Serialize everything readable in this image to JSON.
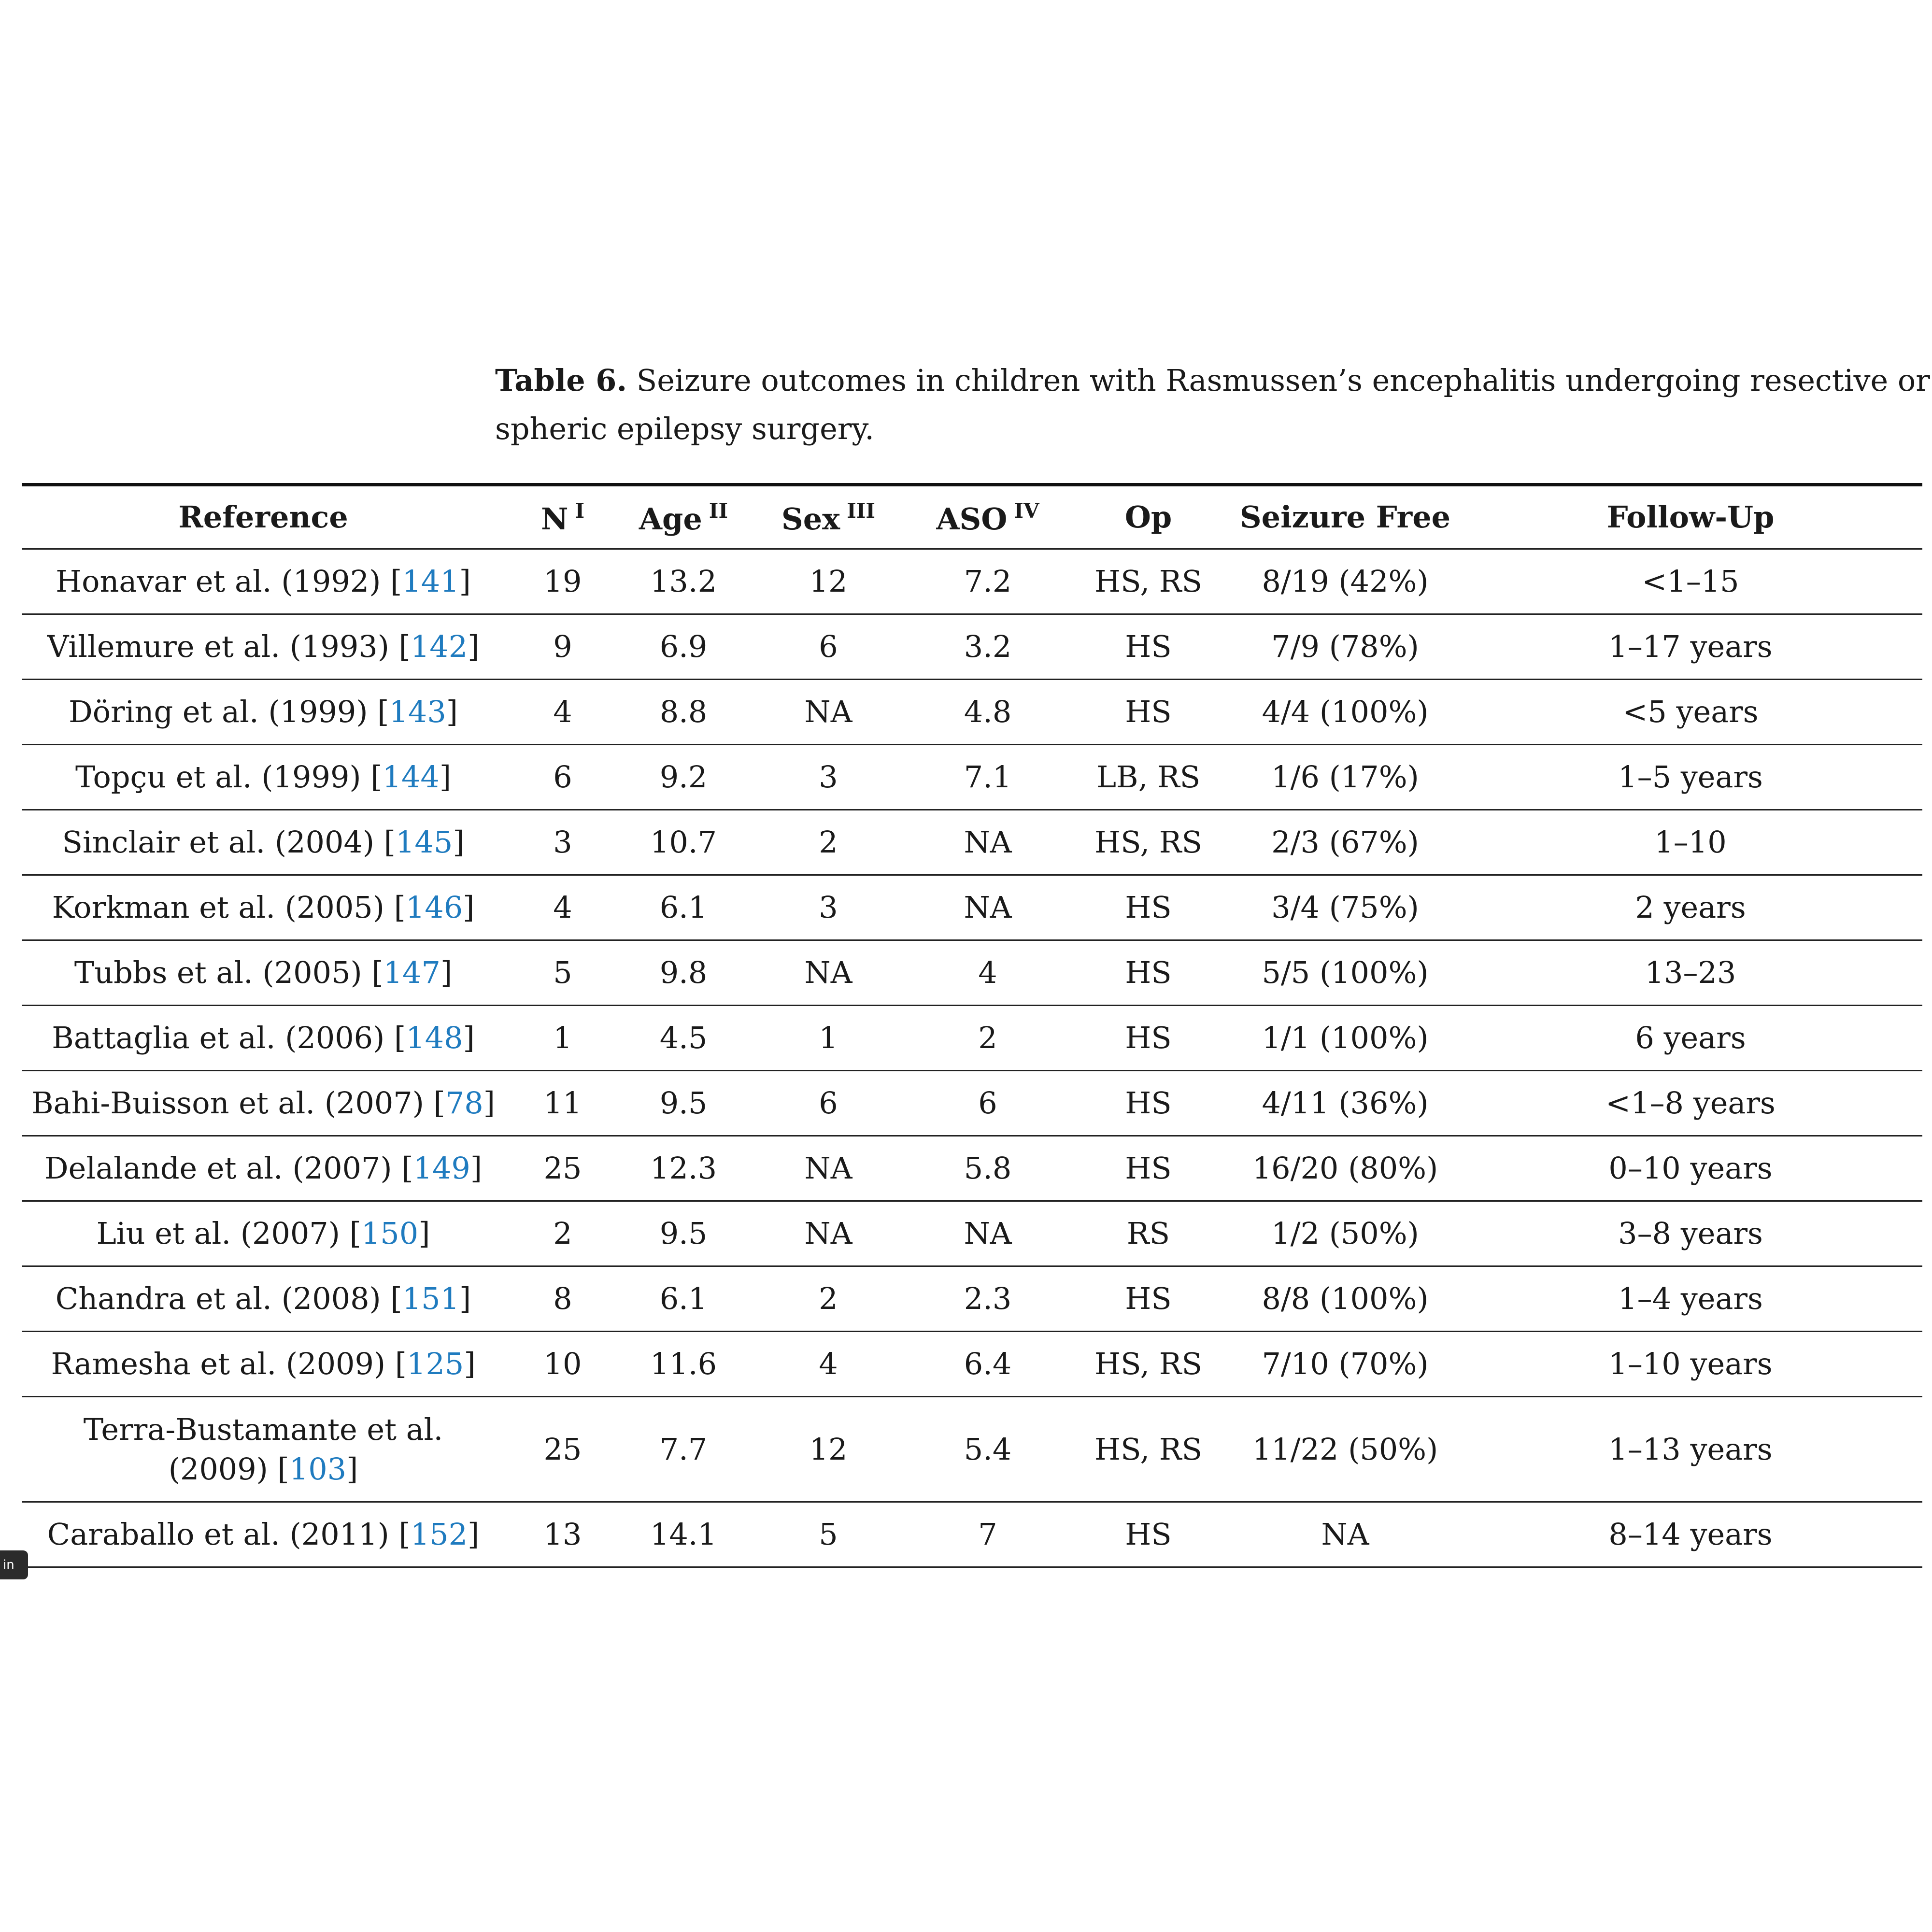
{
  "caption": {
    "label": "Table 6.",
    "line1": " Seizure outcomes in children with Rasmussen’s encephalitis undergoing resective or hemi-",
    "line2": "spheric epilepsy surgery."
  },
  "table": {
    "headers": [
      {
        "text": "Reference",
        "sup": ""
      },
      {
        "text": "N",
        "sup": "I"
      },
      {
        "text": "Age",
        "sup": "II"
      },
      {
        "text": "Sex",
        "sup": "III"
      },
      {
        "text": "ASO",
        "sup": "IV"
      },
      {
        "text": "Op",
        "sup": ""
      },
      {
        "text": "Seizure Free",
        "sup": ""
      },
      {
        "text": "Follow-Up",
        "sup": ""
      }
    ],
    "rows": [
      {
        "ref": "Honavar et al. (1992) [",
        "cite": "141",
        "n": "19",
        "age": "13.2",
        "sex": "12",
        "aso": "7.2",
        "op": "HS, RS",
        "sf": "8/19 (42%)",
        "fu": "<1–15"
      },
      {
        "ref": "Villemure et al. (1993) [",
        "cite": "142",
        "n": "9",
        "age": "6.9",
        "sex": "6",
        "aso": "3.2",
        "op": "HS",
        "sf": "7/9 (78%)",
        "fu": "1–17 years"
      },
      {
        "ref": "Döring et al. (1999) [",
        "cite": "143",
        "n": "4",
        "age": "8.8",
        "sex": "NA",
        "aso": "4.8",
        "op": "HS",
        "sf": "4/4 (100%)",
        "fu": "<5 years"
      },
      {
        "ref": "Topçu et al. (1999) [",
        "cite": "144",
        "n": "6",
        "age": "9.2",
        "sex": "3",
        "aso": "7.1",
        "op": "LB, RS",
        "sf": "1/6 (17%)",
        "fu": "1–5 years"
      },
      {
        "ref": "Sinclair et al. (2004) [",
        "cite": "145",
        "n": "3",
        "age": "10.7",
        "sex": "2",
        "aso": "NA",
        "op": "HS, RS",
        "sf": "2/3 (67%)",
        "fu": "1–10"
      },
      {
        "ref": "Korkman et al. (2005) [",
        "cite": "146",
        "n": "4",
        "age": "6.1",
        "sex": "3",
        "aso": "NA",
        "op": "HS",
        "sf": "3/4 (75%)",
        "fu": "2 years"
      },
      {
        "ref": "Tubbs et al. (2005) [",
        "cite": "147",
        "n": "5",
        "age": "9.8",
        "sex": "NA",
        "aso": "4",
        "op": "HS",
        "sf": "5/5 (100%)",
        "fu": "13–23"
      },
      {
        "ref": "Battaglia et al. (2006) [",
        "cite": "148",
        "n": "1",
        "age": "4.5",
        "sex": "1",
        "aso": "2",
        "op": "HS",
        "sf": "1/1 (100%)",
        "fu": "6 years"
      },
      {
        "ref": "Bahi-Buisson et al. (2007) [",
        "cite": "78",
        "n": "11",
        "age": "9.5",
        "sex": "6",
        "aso": "6",
        "op": "HS",
        "sf": "4/11 (36%)",
        "fu": "<1–8 years"
      },
      {
        "ref": "Delalande et al. (2007) [",
        "cite": "149",
        "n": "25",
        "age": "12.3",
        "sex": "NA",
        "aso": "5.8",
        "op": "HS",
        "sf": "16/20 (80%)",
        "fu": "0–10 years"
      },
      {
        "ref": "Liu et al. (2007) [",
        "cite": "150",
        "n": "2",
        "age": "9.5",
        "sex": "NA",
        "aso": "NA",
        "op": "RS",
        "sf": "1/2 (50%)",
        "fu": "3–8 years"
      },
      {
        "ref": "Chandra et al. (2008) [",
        "cite": "151",
        "n": "8",
        "age": "6.1",
        "sex": "2",
        "aso": "2.3",
        "op": "HS",
        "sf": "8/8 (100%)",
        "fu": "1–4 years"
      },
      {
        "ref": "Ramesha et al. (2009) [",
        "cite": "125",
        "n": "10",
        "age": "11.6",
        "sex": "4",
        "aso": "6.4",
        "op": "HS, RS",
        "sf": "7/10 (70%)",
        "fu": "1–10 years"
      },
      {
        "ref": "Terra-Bustamante et al.",
        "ref2": "(2009) [",
        "cite": "103",
        "n": "25",
        "age": "7.7",
        "sex": "12",
        "aso": "5.4",
        "op": "HS, RS",
        "sf": "11/22 (50%)",
        "fu": "1–13 years"
      },
      {
        "ref": "Caraballo et al. (2011) [",
        "cite": "152",
        "n": "13",
        "age": "14.1",
        "sex": "5",
        "aso": "7",
        "op": "HS",
        "sf": "NA",
        "fu": "8–14 years"
      }
    ]
  },
  "side_badge": {
    "text": "in"
  }
}
